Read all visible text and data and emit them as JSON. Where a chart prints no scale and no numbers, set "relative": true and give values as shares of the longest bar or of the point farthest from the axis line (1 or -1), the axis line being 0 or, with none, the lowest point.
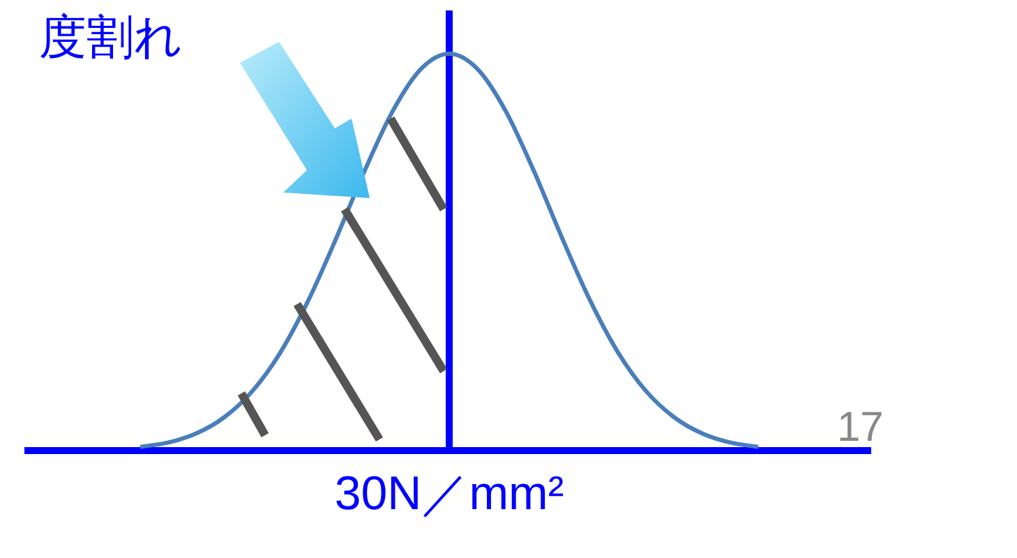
{
  "chart_data": {
    "type": "line",
    "relative": true,
    "xlabel": "30N／mm²",
    "categories": [
      null,
      null,
      null,
      null,
      null,
      null,
      null,
      null,
      null,
      null,
      null,
      null,
      null,
      null,
      null,
      null,
      null,
      null,
      null,
      null,
      null,
      null,
      null,
      null,
      null,
      null,
      null,
      null,
      null,
      null,
      null
    ],
    "series": [
      {
        "color": "#4a7ebb",
        "values": [
          null,
          null,
          null,
          null,
          0.01,
          0.021,
          0.044,
          0.085,
          0.151,
          0.249,
          0.381,
          0.539,
          0.707,
          0.857,
          0.962,
          1,
          0.962,
          0.857,
          0.707,
          0.539,
          0.381,
          0.249,
          0.151,
          0.085,
          0.044,
          0.021,
          0.01,
          null,
          null,
          null,
          null
        ]
      }
    ],
    "annotations": [
      "度割れ",
      "17"
    ],
    "marker": "none",
    "grid": false,
    "legend": false
  }
}
